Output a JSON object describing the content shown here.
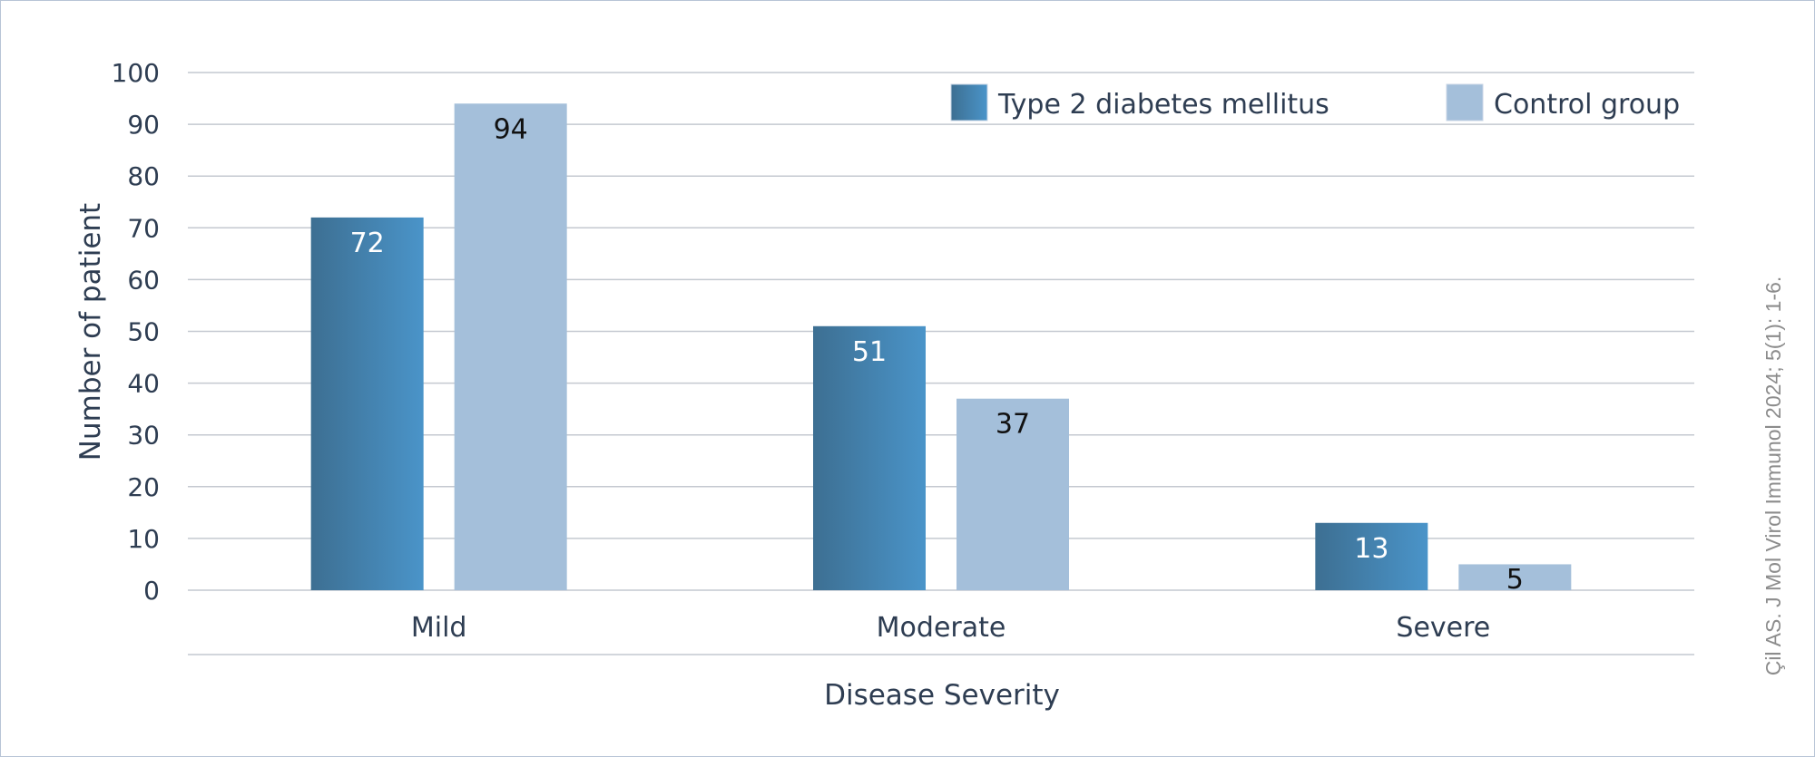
{
  "chart_data": {
    "type": "bar",
    "categories": [
      "Mild",
      "Moderate",
      "Severe"
    ],
    "series": [
      {
        "name": "Type 2 diabetes mellitus",
        "values": [
          72,
          51,
          13
        ],
        "color": "#4a94c9",
        "color_dark": "#3d6f92",
        "label_color": "#ffffff"
      },
      {
        "name": "Control group",
        "values": [
          94,
          37,
          5
        ],
        "color": "#a4bfda",
        "color_dark": "#a4bfda",
        "label_color": "#111111"
      }
    ],
    "xlabel": "Disease Severity",
    "ylabel": "Number of patient",
    "ylim": [
      0,
      100
    ],
    "yticks": [
      0,
      10,
      20,
      30,
      40,
      50,
      60,
      70,
      80,
      90,
      100
    ],
    "grid": true,
    "legend_position": "top-right",
    "data_labels": true
  },
  "citation": "Çil AS. J Mol Virol Immunol 2024; 5(1): 1-6."
}
